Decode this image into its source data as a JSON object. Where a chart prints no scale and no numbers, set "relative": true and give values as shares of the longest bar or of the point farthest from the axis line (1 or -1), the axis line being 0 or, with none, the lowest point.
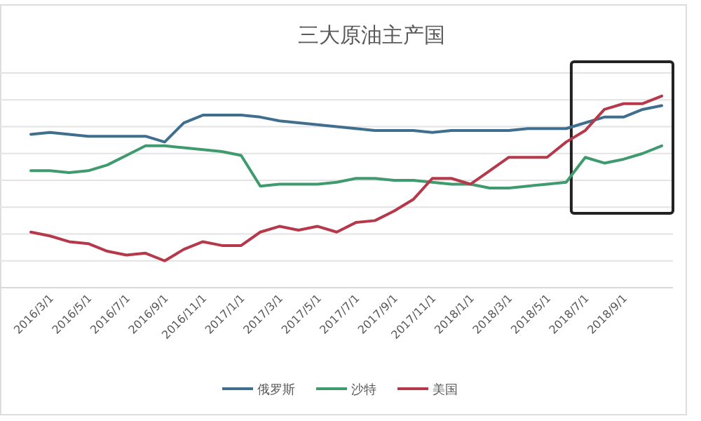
{
  "chart_data": {
    "type": "line",
    "title": "三大原油主产国",
    "relative": true,
    "grid": "y",
    "legend": "bottom",
    "marker": "none",
    "line_style": "solid",
    "categories": [
      null,
      "2016/3/1",
      null,
      "2016/5/1",
      null,
      "2016/7/1",
      null,
      "2016/9/1",
      null,
      "2016/11/1",
      null,
      "2017/1/1",
      null,
      "2017/3/1",
      null,
      "2017/5/1",
      null,
      "2017/7/1",
      null,
      "2017/9/1",
      null,
      "2017/11/1",
      null,
      "2018/1/1",
      null,
      "2018/3/1",
      null,
      "2018/5/1",
      null,
      "2018/7/1",
      null,
      "2018/9/1",
      null,
      null
    ],
    "series": [
      {
        "name": "俄罗斯",
        "color": "#3f6e8e",
        "values": [
          0.8,
          0.81,
          0.8,
          0.79,
          0.79,
          0.79,
          0.79,
          0.76,
          0.86,
          0.9,
          0.9,
          0.9,
          0.89,
          0.87,
          0.86,
          0.85,
          0.84,
          0.83,
          0.82,
          0.82,
          0.82,
          0.81,
          0.82,
          0.82,
          0.82,
          0.82,
          0.83,
          0.83,
          0.83,
          0.86,
          0.89,
          0.89,
          0.93,
          0.95
        ]
      },
      {
        "name": "沙特",
        "color": "#3f9a6e",
        "values": [
          0.61,
          0.61,
          0.6,
          0.61,
          0.64,
          0.69,
          0.74,
          0.74,
          0.73,
          0.72,
          0.71,
          0.69,
          0.53,
          0.54,
          0.54,
          0.54,
          0.55,
          0.57,
          0.57,
          0.56,
          0.56,
          0.55,
          0.54,
          0.54,
          0.52,
          0.52,
          0.53,
          0.54,
          0.55,
          0.68,
          0.65,
          0.67,
          0.7,
          0.74
        ]
      },
      {
        "name": "美国",
        "color": "#b5394a",
        "values": [
          0.29,
          0.27,
          0.24,
          0.23,
          0.19,
          0.17,
          0.18,
          0.14,
          0.2,
          0.24,
          0.22,
          0.22,
          0.29,
          0.32,
          0.3,
          0.32,
          0.29,
          0.34,
          0.35,
          0.4,
          0.46,
          0.57,
          0.57,
          0.54,
          0.61,
          0.68,
          0.68,
          0.68,
          0.76,
          0.82,
          0.93,
          0.96,
          0.96,
          1
        ]
      }
    ]
  }
}
